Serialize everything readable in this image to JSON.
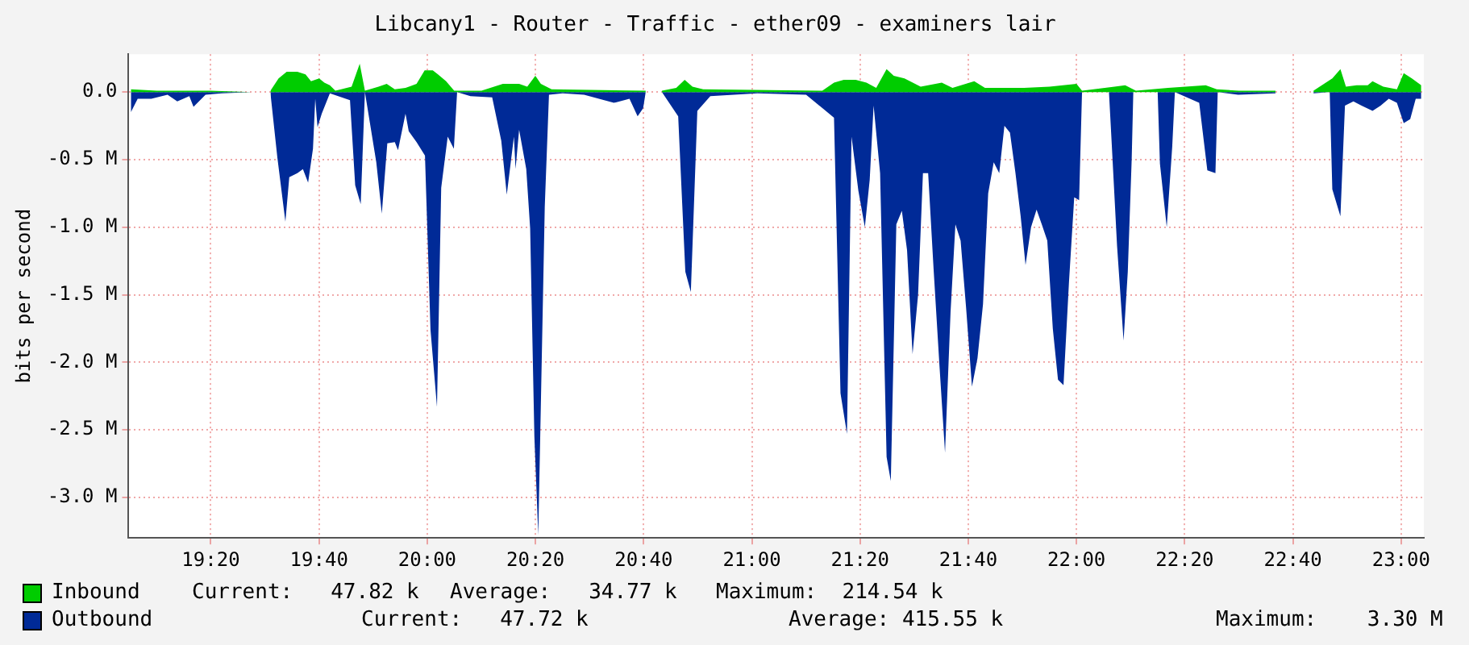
{
  "chart_data": {
    "type": "area",
    "title": "Libcany1 - Router - Traffic - ether09 - examiners lair",
    "ylabel": "bits per second",
    "xlim": [
      19.08,
      23.07
    ],
    "xticks": [
      {
        "value": 19.3333,
        "label": "19:20"
      },
      {
        "value": 19.6667,
        "label": "19:40"
      },
      {
        "value": 20,
        "label": "20:00"
      },
      {
        "value": 20.3333,
        "label": "20:20"
      },
      {
        "value": 20.6667,
        "label": "20:40"
      },
      {
        "value": 21,
        "label": "21:00"
      },
      {
        "value": 21.3333,
        "label": "21:20"
      },
      {
        "value": 21.6667,
        "label": "21:40"
      },
      {
        "value": 22,
        "label": "22:00"
      },
      {
        "value": 22.3333,
        "label": "22:20"
      },
      {
        "value": 22.6667,
        "label": "22:40"
      },
      {
        "value": 23,
        "label": "23:00"
      }
    ],
    "ylim": [
      -3.3,
      0.28
    ],
    "yticks": [
      {
        "value": -3,
        "label": "-3.0 M"
      },
      {
        "value": -2.5,
        "label": "-2.5 M"
      },
      {
        "value": -2,
        "label": "-2.0 M"
      },
      {
        "value": -1.5,
        "label": "-1.5 M"
      },
      {
        "value": -1,
        "label": "-1.0 M"
      },
      {
        "value": -0.5,
        "label": "-0.5 M"
      },
      {
        "value": 0,
        "label": "0.0"
      }
    ],
    "grid": true,
    "legend": "bottom",
    "marker": "none",
    "series": [
      {
        "name": "Inbound",
        "color": "#00cc00",
        "x": [
          19.087,
          19.167,
          19.333,
          19.458,
          19.465,
          19.517,
          19.542,
          19.567,
          19.6,
          19.625,
          19.642,
          19.667,
          19.683,
          19.7,
          19.717,
          19.767,
          19.792,
          19.808,
          19.85,
          19.875,
          19.9,
          19.933,
          19.967,
          19.992,
          20.017,
          20.033,
          20.058,
          20.083,
          20.167,
          20.233,
          20.283,
          20.308,
          20.333,
          20.35,
          20.383,
          20.673,
          20.715,
          20.723,
          20.767,
          20.793,
          20.817,
          20.85,
          21.217,
          21.253,
          21.283,
          21.32,
          21.353,
          21.383,
          21.415,
          21.437,
          21.47,
          21.52,
          21.585,
          21.618,
          21.685,
          21.718,
          21.833,
          21.917,
          22.0,
          22.017,
          22.117,
          22.15,
          22.183,
          22.282,
          22.398,
          22.432,
          22.5,
          22.613,
          22.667,
          22.73,
          22.788,
          22.813,
          22.83,
          22.863,
          22.897,
          22.912,
          22.945,
          22.987,
          23.008,
          23.033,
          23.062
        ],
        "values": [
          0.02,
          0.01,
          0.01,
          0,
          null,
          0.01,
          0.1,
          0.15,
          0.15,
          0.13,
          0.08,
          0.1,
          0.07,
          0.05,
          0.01,
          0.04,
          0.21,
          0.01,
          0.04,
          0.06,
          0.02,
          0.03,
          0.06,
          0.16,
          0.16,
          0.13,
          0.08,
          0.01,
          0.01,
          0.06,
          0.06,
          0.04,
          0.12,
          0.06,
          0.02,
          0.01,
          null,
          0.01,
          0.03,
          0.09,
          0.04,
          0.02,
          0.01,
          0.07,
          0.09,
          0.09,
          0.07,
          0.03,
          0.17,
          0.12,
          0.1,
          0.04,
          0.07,
          0.03,
          0.08,
          0.03,
          0.03,
          0.04,
          0.06,
          0.01,
          0.04,
          0.05,
          0.01,
          0.03,
          0.05,
          0.02,
          0.01,
          0.01,
          null,
          0.01,
          0.1,
          0.17,
          0.04,
          0.05,
          0.05,
          0.08,
          0.04,
          0.02,
          0.14,
          0.1,
          0.05
        ]
      },
      {
        "name": "Outbound",
        "color": "#002a97",
        "x": [
          19.087,
          19.108,
          19.15,
          19.2,
          19.23,
          19.267,
          19.28,
          19.317,
          19.367,
          19.458,
          19.465,
          19.517,
          19.538,
          19.563,
          19.575,
          19.6,
          19.617,
          19.633,
          19.648,
          19.655,
          19.662,
          19.675,
          19.7,
          19.762,
          19.778,
          19.795,
          19.808,
          19.843,
          19.86,
          19.877,
          19.9,
          19.91,
          19.933,
          19.943,
          19.967,
          19.993,
          20.01,
          20.03,
          20.043,
          20.063,
          20.082,
          20.092,
          20.133,
          20.2,
          20.228,
          20.245,
          20.267,
          20.272,
          20.283,
          20.305,
          20.317,
          20.33,
          20.342,
          20.362,
          20.375,
          20.417,
          20.483,
          20.575,
          20.623,
          20.648,
          20.665,
          20.673,
          20.715,
          20.723,
          20.773,
          20.795,
          20.812,
          20.832,
          20.872,
          21.017,
          21.167,
          21.253,
          21.273,
          21.293,
          21.307,
          21.328,
          21.348,
          21.363,
          21.375,
          21.395,
          21.415,
          21.428,
          21.445,
          21.462,
          21.478,
          21.495,
          21.512,
          21.527,
          21.543,
          21.56,
          21.578,
          21.595,
          21.612,
          21.627,
          21.643,
          21.66,
          21.678,
          21.695,
          21.712,
          21.728,
          21.745,
          21.762,
          21.778,
          21.795,
          21.812,
          21.828,
          21.843,
          21.86,
          21.877,
          21.893,
          21.91,
          21.927,
          21.943,
          21.96,
          21.977,
          21.993,
          22.008,
          22.017,
          22.1,
          22.108,
          22.125,
          22.145,
          22.158,
          22.17,
          22.175,
          22.25,
          22.257,
          22.278,
          22.295,
          22.303,
          22.378,
          22.403,
          22.428,
          22.435,
          22.498,
          22.613,
          22.667,
          22.73,
          22.78,
          22.788,
          22.813,
          22.827,
          22.853,
          22.878,
          22.912,
          22.937,
          22.962,
          22.987,
          23.008,
          23.028,
          23.045,
          23.062
        ],
        "values": [
          -0.15,
          -0.05,
          -0.05,
          -0.02,
          -0.07,
          -0.03,
          -0.11,
          -0.02,
          -0.01,
          0,
          null,
          -0.01,
          -0.48,
          -0.96,
          -0.63,
          -0.6,
          -0.57,
          -0.67,
          -0.42,
          -0.05,
          -0.26,
          -0.16,
          -0.01,
          -0.06,
          -0.69,
          -0.83,
          0,
          -0.52,
          -0.9,
          -0.38,
          -0.37,
          -0.43,
          -0.16,
          -0.29,
          -0.37,
          -0.47,
          -1.76,
          -2.33,
          -0.71,
          -0.33,
          -0.42,
          0,
          -0.03,
          -0.04,
          -0.36,
          -0.76,
          -0.33,
          -0.57,
          -0.28,
          -0.57,
          -1.01,
          -2.55,
          -3.28,
          -0.85,
          -0.02,
          -0.01,
          -0.02,
          -0.08,
          -0.05,
          -0.18,
          -0.12,
          0,
          null,
          0,
          -0.18,
          -1.33,
          -1.48,
          -0.14,
          -0.03,
          -0.01,
          -0.02,
          -0.19,
          -2.23,
          -2.53,
          -0.33,
          -0.73,
          -1.0,
          -0.65,
          -0.1,
          -0.6,
          -2.7,
          -2.88,
          -0.98,
          -0.88,
          -1.17,
          -1.94,
          -1.5,
          -0.6,
          -0.6,
          -1.32,
          -2.03,
          -2.67,
          -1.63,
          -0.98,
          -1.1,
          -1.6,
          -2.18,
          -1.97,
          -1.57,
          -0.75,
          -0.52,
          -0.6,
          -0.25,
          -0.3,
          -0.6,
          -0.92,
          -1.28,
          -1.0,
          -0.87,
          -0.98,
          -1.1,
          -1.75,
          -2.13,
          -2.17,
          -1.4,
          -0.78,
          -0.8,
          0,
          0,
          -0.36,
          -1.14,
          -1.84,
          -1.33,
          -0.5,
          0,
          0,
          -0.53,
          -1.0,
          -0.4,
          0,
          -0.08,
          -0.58,
          -0.6,
          0,
          -0.02,
          -0.01,
          null,
          -0.01,
          0,
          -0.72,
          -0.92,
          -0.1,
          -0.07,
          -0.1,
          -0.14,
          -0.1,
          -0.05,
          -0.08,
          -0.23,
          -0.2,
          -0.05,
          -0.05
        ]
      }
    ],
    "annotations": [
      "Current:   47.82 k",
      "Average:   34.77 k",
      "Maximum:  214.54 k",
      "Current:   47.72 k",
      "Average: 415.55 k",
      "Maximum:    3.30 M"
    ]
  }
}
